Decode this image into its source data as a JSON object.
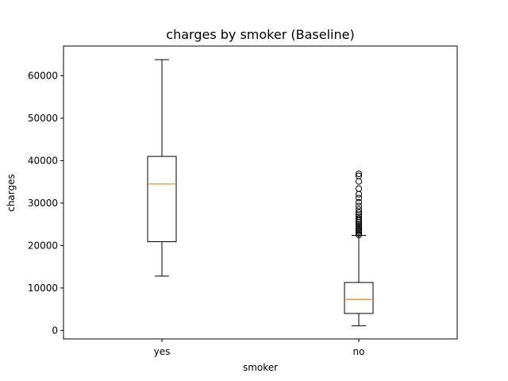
{
  "chart_data": {
    "type": "boxplot",
    "title": "charges by smoker (Baseline)",
    "xlabel": "smoker",
    "ylabel": "charges",
    "categories": [
      "yes",
      "no"
    ],
    "ylim": [
      -2000,
      67000
    ],
    "yticks": [
      0,
      10000,
      20000,
      30000,
      40000,
      50000,
      60000
    ],
    "grid": false,
    "colors": {
      "box": "#000000",
      "median": "#ff7f0e",
      "flier": "#000000"
    },
    "boxes": [
      {
        "category": "yes",
        "whisker_low": 12800,
        "q1": 20900,
        "median": 34500,
        "q3": 41000,
        "whisker_high": 63800,
        "fliers": []
      },
      {
        "category": "no",
        "whisker_low": 1100,
        "q1": 4000,
        "median": 7300,
        "q3": 11300,
        "whisker_high": 22400,
        "fliers": [
          22500,
          22900,
          23300,
          23600,
          24000,
          24400,
          24700,
          25100,
          25500,
          25900,
          26300,
          26800,
          27300,
          27800,
          28500,
          29300,
          30200,
          31200,
          32100,
          33400,
          35100,
          36400,
          36900
        ]
      }
    ]
  }
}
